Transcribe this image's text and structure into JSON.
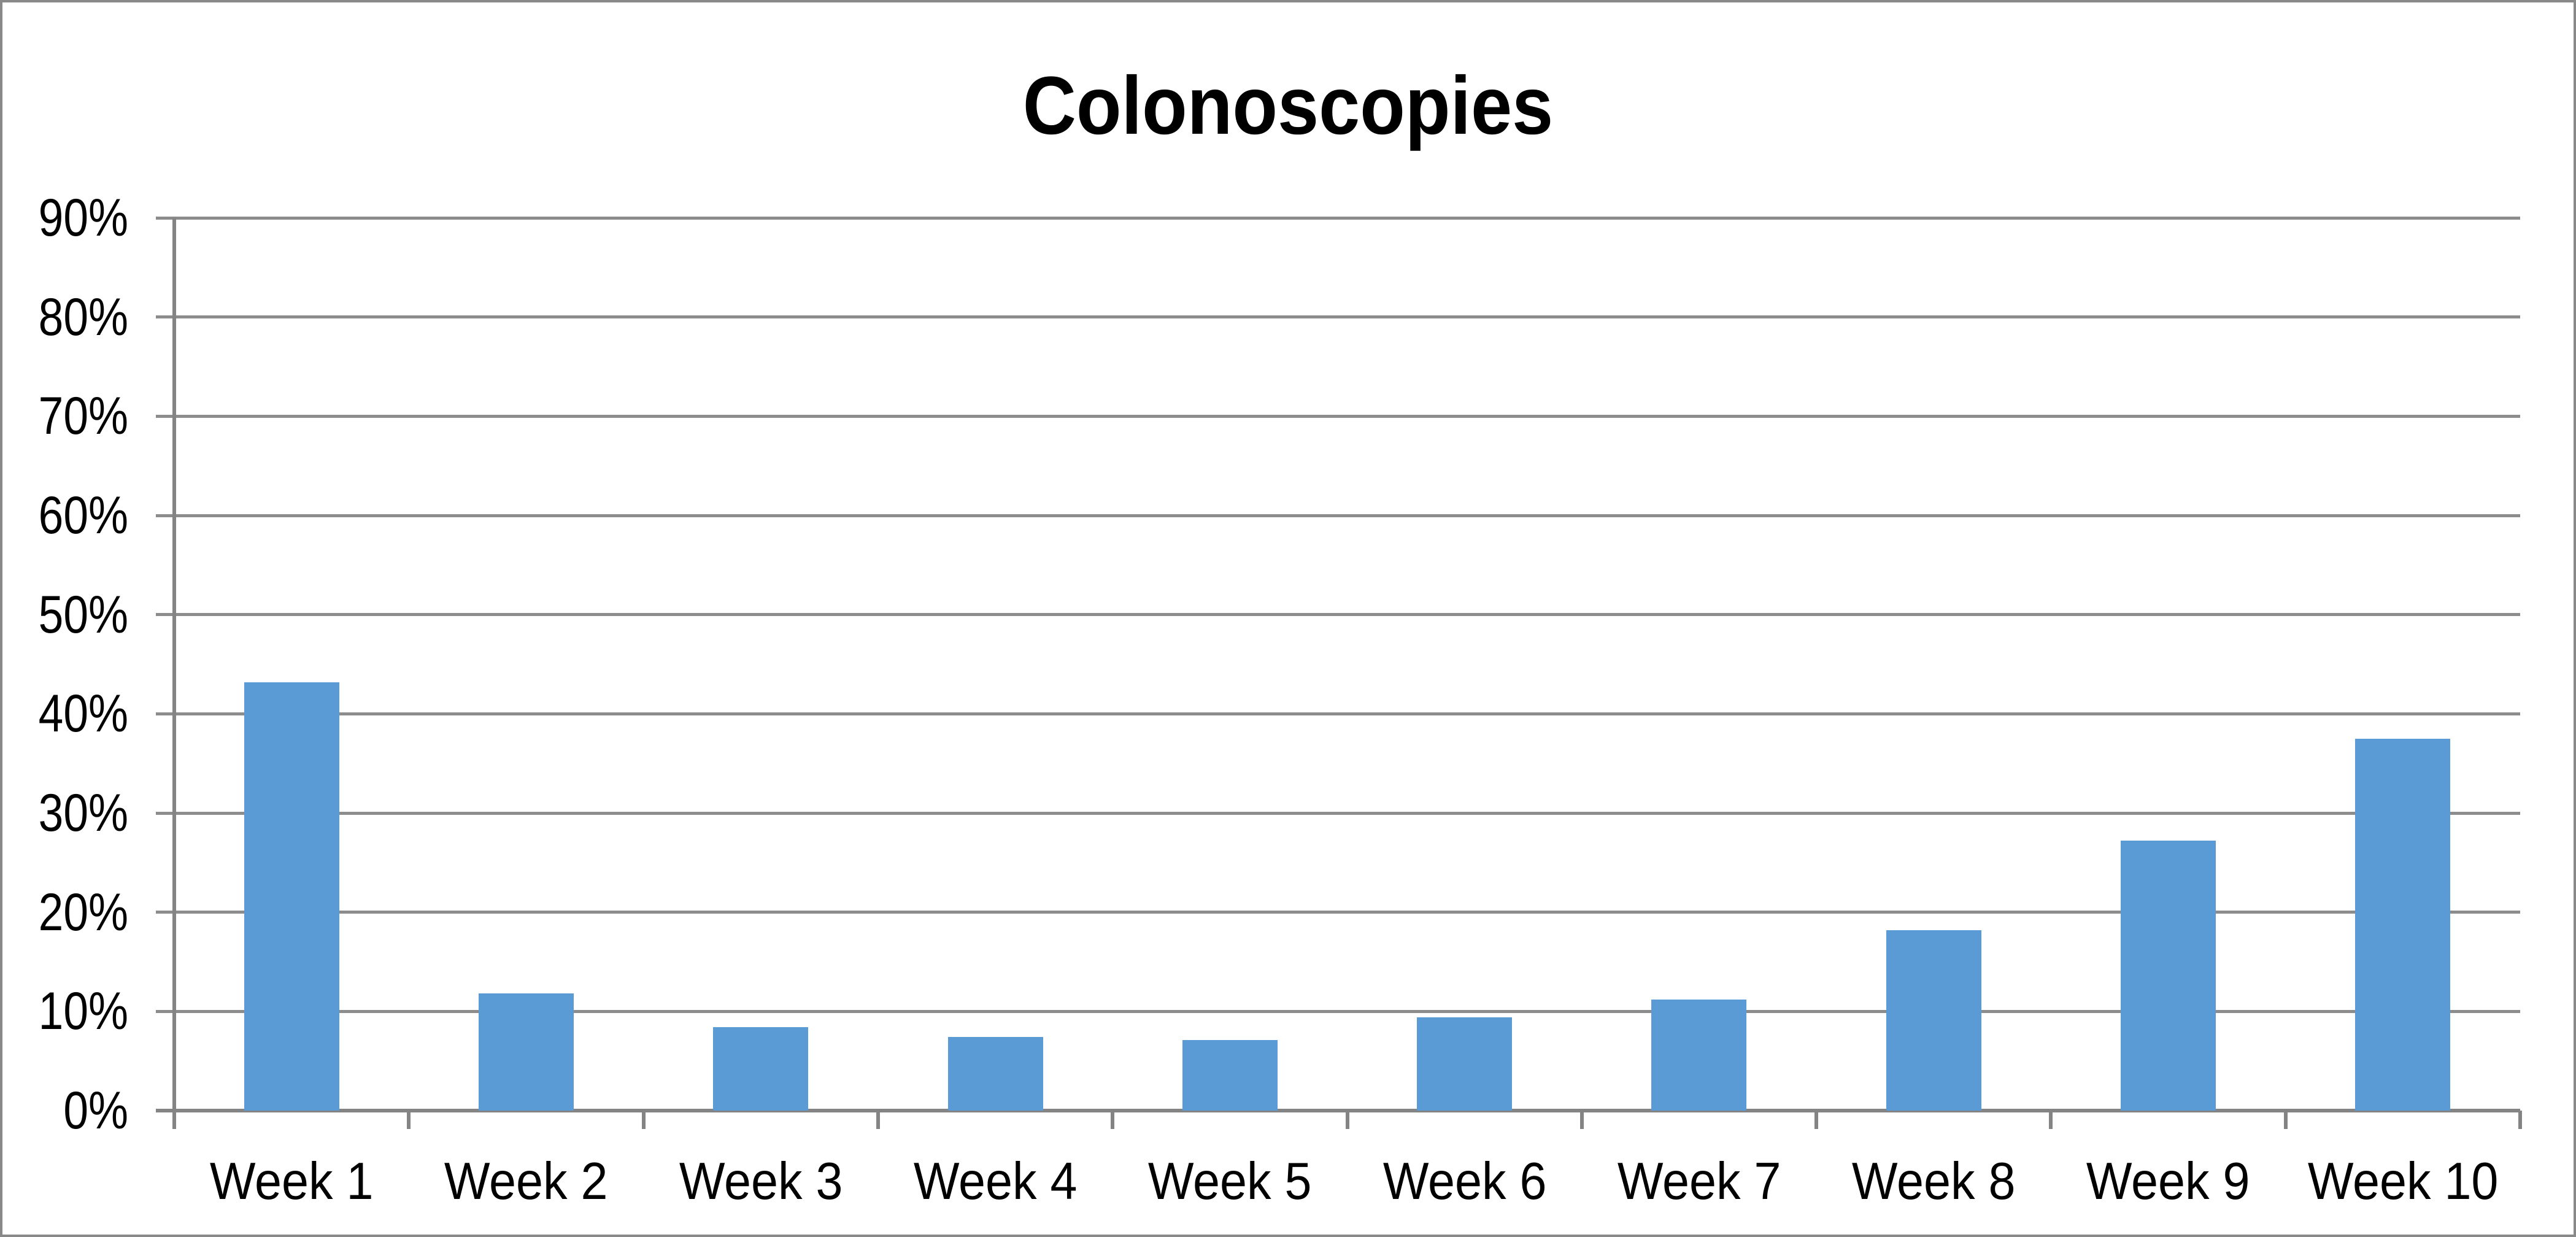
{
  "chart_data": {
    "type": "bar",
    "title": "Colonoscopies",
    "categories": [
      "Week 1",
      "Week 2",
      "Week 3",
      "Week 4",
      "Week 5",
      "Week 6",
      "Week 7",
      "Week 8",
      "Week 9",
      "Week 10"
    ],
    "values": [
      43.2,
      11.8,
      8.4,
      7.4,
      7.1,
      9.4,
      11.2,
      18.2,
      27.2,
      37.5
    ],
    "unit": "%",
    "xlabel": "",
    "ylabel": "",
    "y_axis": {
      "min": 0,
      "max": 90,
      "step": 10,
      "tick_labels": [
        "90%",
        "80%",
        "70%",
        "60%",
        "50%",
        "40%",
        "30%",
        "20%",
        "10%",
        "0%"
      ]
    },
    "grid": "horizontal-major",
    "legend": "none",
    "colors": {
      "bar": "#5B9BD5",
      "gridline": "#8C8C8C",
      "axis": "#848484",
      "canvas_border": "#898989",
      "title_text": "#000000",
      "label_text": "#000000",
      "background": "#FFFFFF"
    }
  }
}
